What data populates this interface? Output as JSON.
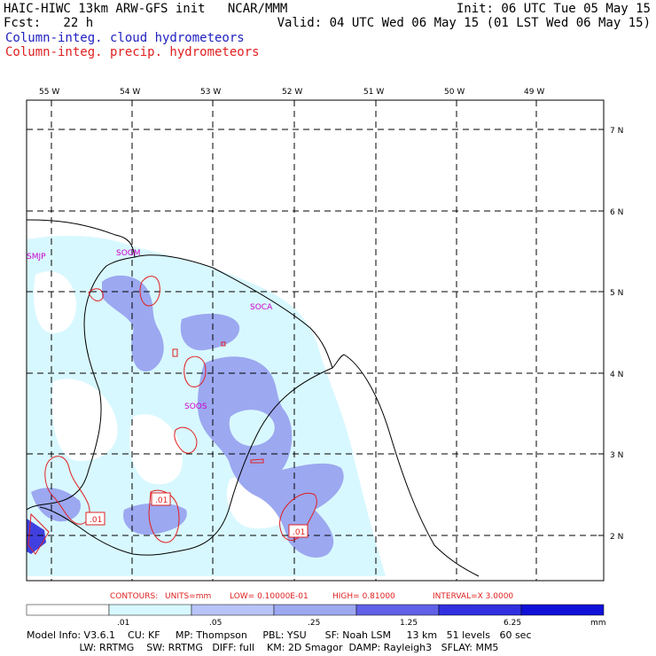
{
  "header": {
    "title": "HAIC-HIWC 13km ARW-GFS init   NCAR/MMM",
    "fcst": "Fcst:   22 h",
    "init": "Init: 06 UTC Tue 05 May 15",
    "valid": "Valid: 04 UTC Wed 06 May 15 (01 LST Wed 06 May 15)",
    "field1": "Column-integ. cloud hydrometeors",
    "field2": "Column-integ. precip. hydrometeors"
  },
  "map": {
    "lon_labels": [
      "55 W",
      "54 W",
      "53 W",
      "52 W",
      "51 W",
      "50 W",
      "49 W"
    ],
    "lat_labels": [
      "7 N",
      "6 N",
      "5 N",
      "4 N",
      "3 N",
      "2 N"
    ],
    "stations": [
      "SMJP",
      "SOGM",
      "SOCA",
      "SOOS"
    ],
    "contour_labels": [
      ".01",
      ".01",
      ".01"
    ],
    "colors": {
      "coast": "#000000",
      "grid": "#000000",
      "station": "#cc00cc",
      "precip": "#e02020",
      "cloud_light": "#d8f8ff",
      "cloud_mid": "#9ca8f0"
    }
  },
  "contours_text": {
    "contours": "CONTOURS:",
    "units": "UNITS=mm",
    "low": "LOW= 0.10000E-01",
    "high": "HIGH= 0.81000",
    "interval": "INTERVAL=X  3.0000"
  },
  "colorbar": {
    "labels": [
      ".01",
      ".05",
      ".25",
      "1.25",
      "6.25"
    ],
    "unit": "mm",
    "colors": [
      "#ffffff",
      "#d8f8ff",
      "#b8c4f8",
      "#9ca8f0",
      "#6060e8",
      "#3030e0",
      "#1010d8"
    ]
  },
  "footer": {
    "line1": "Model Info: V3.6.1    CU: KF     MP: Thompson     PBL: YSU      SF: Noah LSM     13 km   51 levels   60 sec",
    "line2": "                 LW: RRTMG    SW: RRTMG   DIFF: full    KM: 2D Smagor  DAMP: Rayleigh3   SFLAY: MM5"
  }
}
